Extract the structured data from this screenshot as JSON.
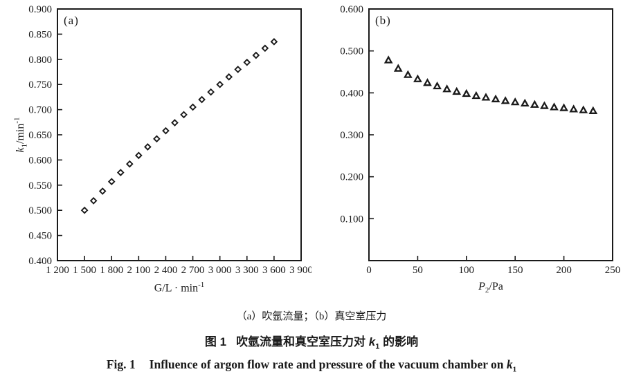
{
  "colors": {
    "ink": "#1a1a1a",
    "background": "#ffffff"
  },
  "chart_data": [
    {
      "id": "a",
      "type": "scatter",
      "panel_label": "(a)",
      "marker": "open-diamond",
      "xlabel": "G/L·min⁻¹",
      "ylabel": "k₁/min⁻¹",
      "xlabel_main": "G/L · min",
      "xlabel_sup": "-1",
      "ylabel_var": "k",
      "ylabel_var_sub": "1",
      "ylabel_rest": "/min",
      "ylabel_sup": "-1",
      "xlim": [
        1200,
        3900
      ],
      "ylim": [
        0.4,
        0.9
      ],
      "grid": false,
      "legend": "none",
      "x_ticks": [
        1200,
        1500,
        1800,
        2100,
        2400,
        2700,
        3000,
        3300,
        3600,
        3900
      ],
      "x_tick_labels": [
        "1 200",
        "1 500",
        "1 800",
        "2 100",
        "2 400",
        "2 700",
        "3 000",
        "3 300",
        "3 600",
        "3 900"
      ],
      "y_ticks": [
        0.4,
        0.45,
        0.5,
        0.55,
        0.6,
        0.65,
        0.7,
        0.75,
        0.8,
        0.85,
        0.9
      ],
      "y_tick_labels": [
        "0.400",
        "0.450",
        "0.500",
        "0.550",
        "0.600",
        "0.650",
        "0.700",
        "0.750",
        "0.800",
        "0.850",
        "0.900"
      ],
      "x": [
        1500,
        1600,
        1700,
        1800,
        1900,
        2000,
        2100,
        2200,
        2300,
        2400,
        2500,
        2600,
        2700,
        2800,
        2900,
        3000,
        3100,
        3200,
        3300,
        3400,
        3500,
        3600
      ],
      "y": [
        0.5,
        0.519,
        0.538,
        0.557,
        0.575,
        0.592,
        0.609,
        0.626,
        0.642,
        0.658,
        0.674,
        0.69,
        0.705,
        0.72,
        0.735,
        0.75,
        0.765,
        0.78,
        0.794,
        0.808,
        0.822,
        0.835
      ]
    },
    {
      "id": "b",
      "type": "scatter",
      "panel_label": "(b)",
      "marker": "open-triangle",
      "xlabel": "P₂/Pa",
      "ylabel": "",
      "xlabel_var": "P",
      "xlabel_sub": "2",
      "xlabel_rest": "/Pa",
      "xlim": [
        0,
        250
      ],
      "ylim": [
        0.0,
        0.6
      ],
      "grid": false,
      "legend": "none",
      "x_ticks": [
        0,
        50,
        100,
        150,
        200,
        250
      ],
      "x_tick_labels": [
        "0",
        "50",
        "100",
        "150",
        "200",
        "250"
      ],
      "y_ticks": [
        0.1,
        0.2,
        0.3,
        0.4,
        0.5,
        0.6
      ],
      "y_tick_labels": [
        "0.100",
        "0.200",
        "0.300",
        "0.400",
        "0.500",
        "0.600"
      ],
      "x": [
        20,
        30,
        40,
        50,
        60,
        70,
        80,
        90,
        100,
        110,
        120,
        130,
        140,
        150,
        160,
        170,
        180,
        190,
        200,
        210,
        220,
        230
      ],
      "y": [
        0.478,
        0.458,
        0.443,
        0.433,
        0.424,
        0.416,
        0.409,
        0.403,
        0.398,
        0.393,
        0.389,
        0.385,
        0.381,
        0.378,
        0.375,
        0.372,
        0.369,
        0.366,
        0.364,
        0.361,
        0.359,
        0.357
      ]
    }
  ],
  "captions": {
    "sub_caption": "（a）吹氩流量；（b）真空室压力",
    "cn_prefix": "图 1",
    "cn_main": "吹氩流量和真空室压力对 ",
    "cn_var": "k",
    "cn_var_sub": "1",
    "cn_suffix": " 的影响",
    "en_prefix": "Fig. 1",
    "en_main": "Influence of argon flow rate and pressure of the vacuum chamber on ",
    "en_var": "k",
    "en_var_sub": "1"
  }
}
